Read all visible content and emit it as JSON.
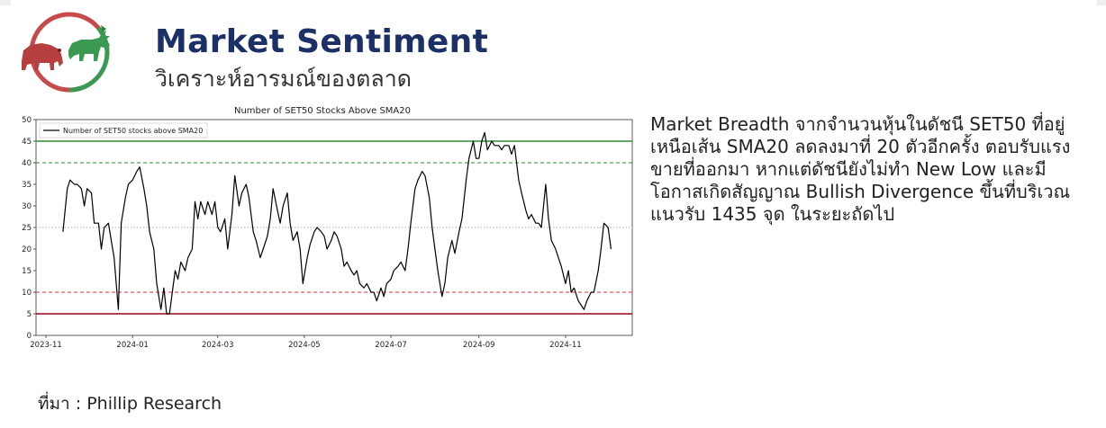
{
  "header": {
    "title": "Market Sentiment",
    "subtitle": "วิเคราะห์อารมณ์ของตลาด"
  },
  "logo": {
    "icon": "bull-and-bear-logo",
    "bear_color": "#b5403f",
    "bull_color": "#3a9a52"
  },
  "commentary": "Market Breadth จากจำนวนหุ้นในดัชนี SET50 ที่อยู่เหนือเส้น SMA20 ลดลงมาที่ 20 ตัวอีกครั้ง ตอบรับแรงขายที่ออกมา หากแต่ดัชนียังไม่ทำ New Low และมีโอกาสเกิดสัญญาณ Bullish Divergence  ขึ้นที่บริเวณแนวรับ 1435  จุด ในระยะถัดไป",
  "source": "ที่มา : Phillip Research",
  "colors": {
    "title": "#1c3068",
    "line": "#000000",
    "green_line": "#2e8b2e",
    "red_line": "#a0001a",
    "red_dashed": "#e23232",
    "grey_dotted": "#aaaaaa"
  },
  "chart_data": {
    "type": "line",
    "title": "Number of SET50 Stocks Above SMA20",
    "legend": "Number of SET50 stocks above SMA20",
    "legend_position": "top-left",
    "xlabel": "",
    "ylabel": "",
    "ylim": [
      0,
      50
    ],
    "xlim": [
      "2023-10-25",
      "2024-12-18"
    ],
    "y_ticks": [
      "0",
      "5",
      "10",
      "15",
      "20",
      "25",
      "30",
      "35",
      "40",
      "45",
      "50"
    ],
    "x_ticks": [
      {
        "date": "2023-11-01",
        "label": "2023-11"
      },
      {
        "date": "2024-01-01",
        "label": "2024-01"
      },
      {
        "date": "2024-03-01",
        "label": "2024-03"
      },
      {
        "date": "2024-05-01",
        "label": "2024-05"
      },
      {
        "date": "2024-07-01",
        "label": "2024-07"
      },
      {
        "date": "2024-09-01",
        "label": "2024-09"
      },
      {
        "date": "2024-11-01",
        "label": "2024-11"
      }
    ],
    "grid": false,
    "reference_lines": [
      {
        "y": 45,
        "style": "solid",
        "color": "#2e8b2e"
      },
      {
        "y": 40,
        "style": "dashed",
        "color": "#2e8b2e"
      },
      {
        "y": 25,
        "style": "dotted",
        "color": "#aaaaaa"
      },
      {
        "y": 10,
        "style": "dashed",
        "color": "#e23232"
      },
      {
        "y": 5,
        "style": "solid",
        "color": "#a0001a"
      }
    ],
    "series": [
      {
        "name": "Number of SET50 stocks above SMA20",
        "points": [
          [
            "2023-11-13",
            24
          ],
          [
            "2023-11-16",
            34
          ],
          [
            "2023-11-18",
            36
          ],
          [
            "2023-11-21",
            35
          ],
          [
            "2023-11-23",
            35
          ],
          [
            "2023-11-26",
            34
          ],
          [
            "2023-11-28",
            30
          ],
          [
            "2023-11-30",
            34
          ],
          [
            "2023-12-03",
            33
          ],
          [
            "2023-12-05",
            26
          ],
          [
            "2023-12-08",
            26
          ],
          [
            "2023-12-10",
            20
          ],
          [
            "2023-12-12",
            25
          ],
          [
            "2023-12-15",
            26
          ],
          [
            "2023-12-17",
            22
          ],
          [
            "2023-12-19",
            18
          ],
          [
            "2023-12-22",
            6
          ],
          [
            "2023-12-24",
            26
          ],
          [
            "2023-12-27",
            32
          ],
          [
            "2023-12-29",
            35
          ],
          [
            "2024-01-01",
            36
          ],
          [
            "2024-01-04",
            38
          ],
          [
            "2024-01-06",
            39
          ],
          [
            "2024-01-09",
            34
          ],
          [
            "2024-01-11",
            30
          ],
          [
            "2024-01-13",
            24
          ],
          [
            "2024-01-16",
            20
          ],
          [
            "2024-01-18",
            12
          ],
          [
            "2024-01-21",
            6
          ],
          [
            "2024-01-23",
            11
          ],
          [
            "2024-01-25",
            5
          ],
          [
            "2024-01-27",
            5
          ],
          [
            "2024-01-29",
            10
          ],
          [
            "2024-01-31",
            15
          ],
          [
            "2024-02-02",
            13
          ],
          [
            "2024-02-04",
            17
          ],
          [
            "2024-02-07",
            15
          ],
          [
            "2024-02-09",
            18
          ],
          [
            "2024-02-12",
            20
          ],
          [
            "2024-02-14",
            31
          ],
          [
            "2024-02-16",
            27
          ],
          [
            "2024-02-18",
            31
          ],
          [
            "2024-02-21",
            28
          ],
          [
            "2024-02-23",
            31
          ],
          [
            "2024-02-26",
            28
          ],
          [
            "2024-02-28",
            31
          ],
          [
            "2024-03-01",
            25
          ],
          [
            "2024-03-03",
            24
          ],
          [
            "2024-03-06",
            27
          ],
          [
            "2024-03-08",
            20
          ],
          [
            "2024-03-11",
            28
          ],
          [
            "2024-03-13",
            37
          ],
          [
            "2024-03-16",
            30
          ],
          [
            "2024-03-18",
            33
          ],
          [
            "2024-03-21",
            35
          ],
          [
            "2024-03-23",
            32
          ],
          [
            "2024-03-26",
            24
          ],
          [
            "2024-03-28",
            22
          ],
          [
            "2024-03-31",
            18
          ],
          [
            "2024-04-02",
            20
          ],
          [
            "2024-04-05",
            23
          ],
          [
            "2024-04-07",
            27
          ],
          [
            "2024-04-09",
            34
          ],
          [
            "2024-04-12",
            29
          ],
          [
            "2024-04-14",
            26
          ],
          [
            "2024-04-16",
            30
          ],
          [
            "2024-04-19",
            33
          ],
          [
            "2024-04-21",
            26
          ],
          [
            "2024-04-23",
            22
          ],
          [
            "2024-04-26",
            24
          ],
          [
            "2024-04-28",
            20
          ],
          [
            "2024-04-30",
            12
          ],
          [
            "2024-05-03",
            18
          ],
          [
            "2024-05-05",
            21
          ],
          [
            "2024-05-08",
            24
          ],
          [
            "2024-05-10",
            25
          ],
          [
            "2024-05-13",
            24
          ],
          [
            "2024-05-15",
            23
          ],
          [
            "2024-05-17",
            20
          ],
          [
            "2024-05-20",
            22
          ],
          [
            "2024-05-22",
            24
          ],
          [
            "2024-05-24",
            23
          ],
          [
            "2024-05-27",
            20
          ],
          [
            "2024-05-29",
            16
          ],
          [
            "2024-05-31",
            17
          ],
          [
            "2024-06-03",
            15
          ],
          [
            "2024-06-05",
            14
          ],
          [
            "2024-06-07",
            15
          ],
          [
            "2024-06-09",
            12
          ],
          [
            "2024-06-12",
            11
          ],
          [
            "2024-06-14",
            12
          ],
          [
            "2024-06-17",
            10
          ],
          [
            "2024-06-19",
            10
          ],
          [
            "2024-06-21",
            8
          ],
          [
            "2024-06-24",
            11
          ],
          [
            "2024-06-26",
            9
          ],
          [
            "2024-06-28",
            12
          ],
          [
            "2024-07-01",
            13
          ],
          [
            "2024-07-03",
            15
          ],
          [
            "2024-07-06",
            16
          ],
          [
            "2024-07-08",
            17
          ],
          [
            "2024-07-11",
            15
          ],
          [
            "2024-07-13",
            20
          ],
          [
            "2024-07-15",
            26
          ],
          [
            "2024-07-18",
            34
          ],
          [
            "2024-07-20",
            36
          ],
          [
            "2024-07-23",
            38
          ],
          [
            "2024-07-25",
            37
          ],
          [
            "2024-07-28",
            32
          ],
          [
            "2024-07-30",
            25
          ],
          [
            "2024-08-01",
            20
          ],
          [
            "2024-08-03",
            15
          ],
          [
            "2024-08-06",
            9
          ],
          [
            "2024-08-08",
            12
          ],
          [
            "2024-08-10",
            18
          ],
          [
            "2024-08-13",
            22
          ],
          [
            "2024-08-15",
            19
          ],
          [
            "2024-08-18",
            24
          ],
          [
            "2024-08-20",
            27
          ],
          [
            "2024-08-23",
            36
          ],
          [
            "2024-08-25",
            41
          ],
          [
            "2024-08-28",
            45
          ],
          [
            "2024-08-30",
            41
          ],
          [
            "2024-09-01",
            41
          ],
          [
            "2024-09-03",
            45
          ],
          [
            "2024-09-05",
            47
          ],
          [
            "2024-09-07",
            43
          ],
          [
            "2024-09-10",
            45
          ],
          [
            "2024-09-12",
            44
          ],
          [
            "2024-09-15",
            44
          ],
          [
            "2024-09-17",
            43
          ],
          [
            "2024-09-19",
            44
          ],
          [
            "2024-09-22",
            44
          ],
          [
            "2024-09-24",
            42
          ],
          [
            "2024-09-26",
            44
          ],
          [
            "2024-09-29",
            36
          ],
          [
            "2024-10-01",
            33
          ],
          [
            "2024-10-04",
            29
          ],
          [
            "2024-10-06",
            27
          ],
          [
            "2024-10-08",
            28
          ],
          [
            "2024-10-11",
            26
          ],
          [
            "2024-10-13",
            26
          ],
          [
            "2024-10-15",
            25
          ],
          [
            "2024-10-18",
            35
          ],
          [
            "2024-10-20",
            27
          ],
          [
            "2024-10-22",
            22
          ],
          [
            "2024-10-25",
            20
          ],
          [
            "2024-10-27",
            18
          ],
          [
            "2024-10-29",
            16
          ],
          [
            "2024-11-01",
            12
          ],
          [
            "2024-11-03",
            15
          ],
          [
            "2024-11-05",
            10
          ],
          [
            "2024-11-07",
            11
          ],
          [
            "2024-11-10",
            8
          ],
          [
            "2024-11-12",
            7
          ],
          [
            "2024-11-14",
            6
          ],
          [
            "2024-11-16",
            8
          ],
          [
            "2024-11-19",
            10
          ],
          [
            "2024-11-21",
            10
          ],
          [
            "2024-11-24",
            15
          ],
          [
            "2024-11-26",
            20
          ],
          [
            "2024-11-28",
            26
          ],
          [
            "2024-12-01",
            25
          ],
          [
            "2024-12-03",
            20
          ]
        ]
      }
    ]
  }
}
